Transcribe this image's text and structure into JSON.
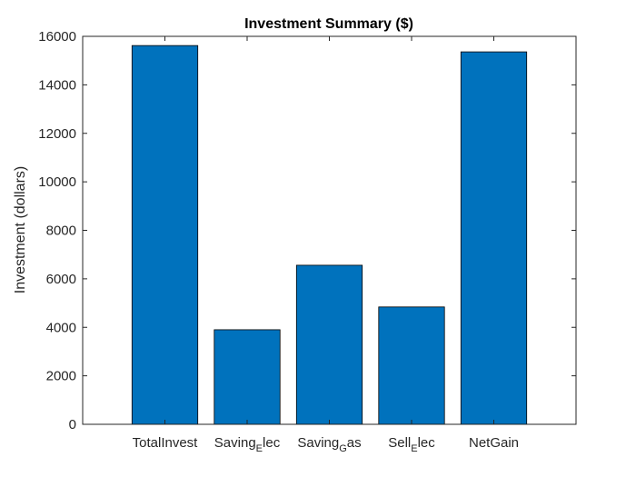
{
  "chart_data": {
    "type": "bar",
    "title": "Investment Summary ($)",
    "xlabel": "",
    "ylabel": "Investment (dollars)",
    "categories": [
      {
        "base": "TotalInvest",
        "sub": "",
        "tail": ""
      },
      {
        "base": "Saving",
        "sub": "E",
        "tail": "lec"
      },
      {
        "base": "Saving",
        "sub": "G",
        "tail": "as"
      },
      {
        "base": "Sell",
        "sub": "E",
        "tail": "lec"
      },
      {
        "base": "NetGain",
        "sub": "",
        "tail": ""
      }
    ],
    "values": [
      15620,
      3900,
      6560,
      4840,
      15360
    ],
    "ylim": [
      0,
      16000
    ],
    "yticks": [
      0,
      2000,
      4000,
      6000,
      8000,
      10000,
      12000,
      14000,
      16000
    ],
    "grid": false,
    "legend": "none",
    "colors": {
      "bar": "#0072BD",
      "bar_edge": "#000000",
      "axis": "#262626"
    }
  }
}
